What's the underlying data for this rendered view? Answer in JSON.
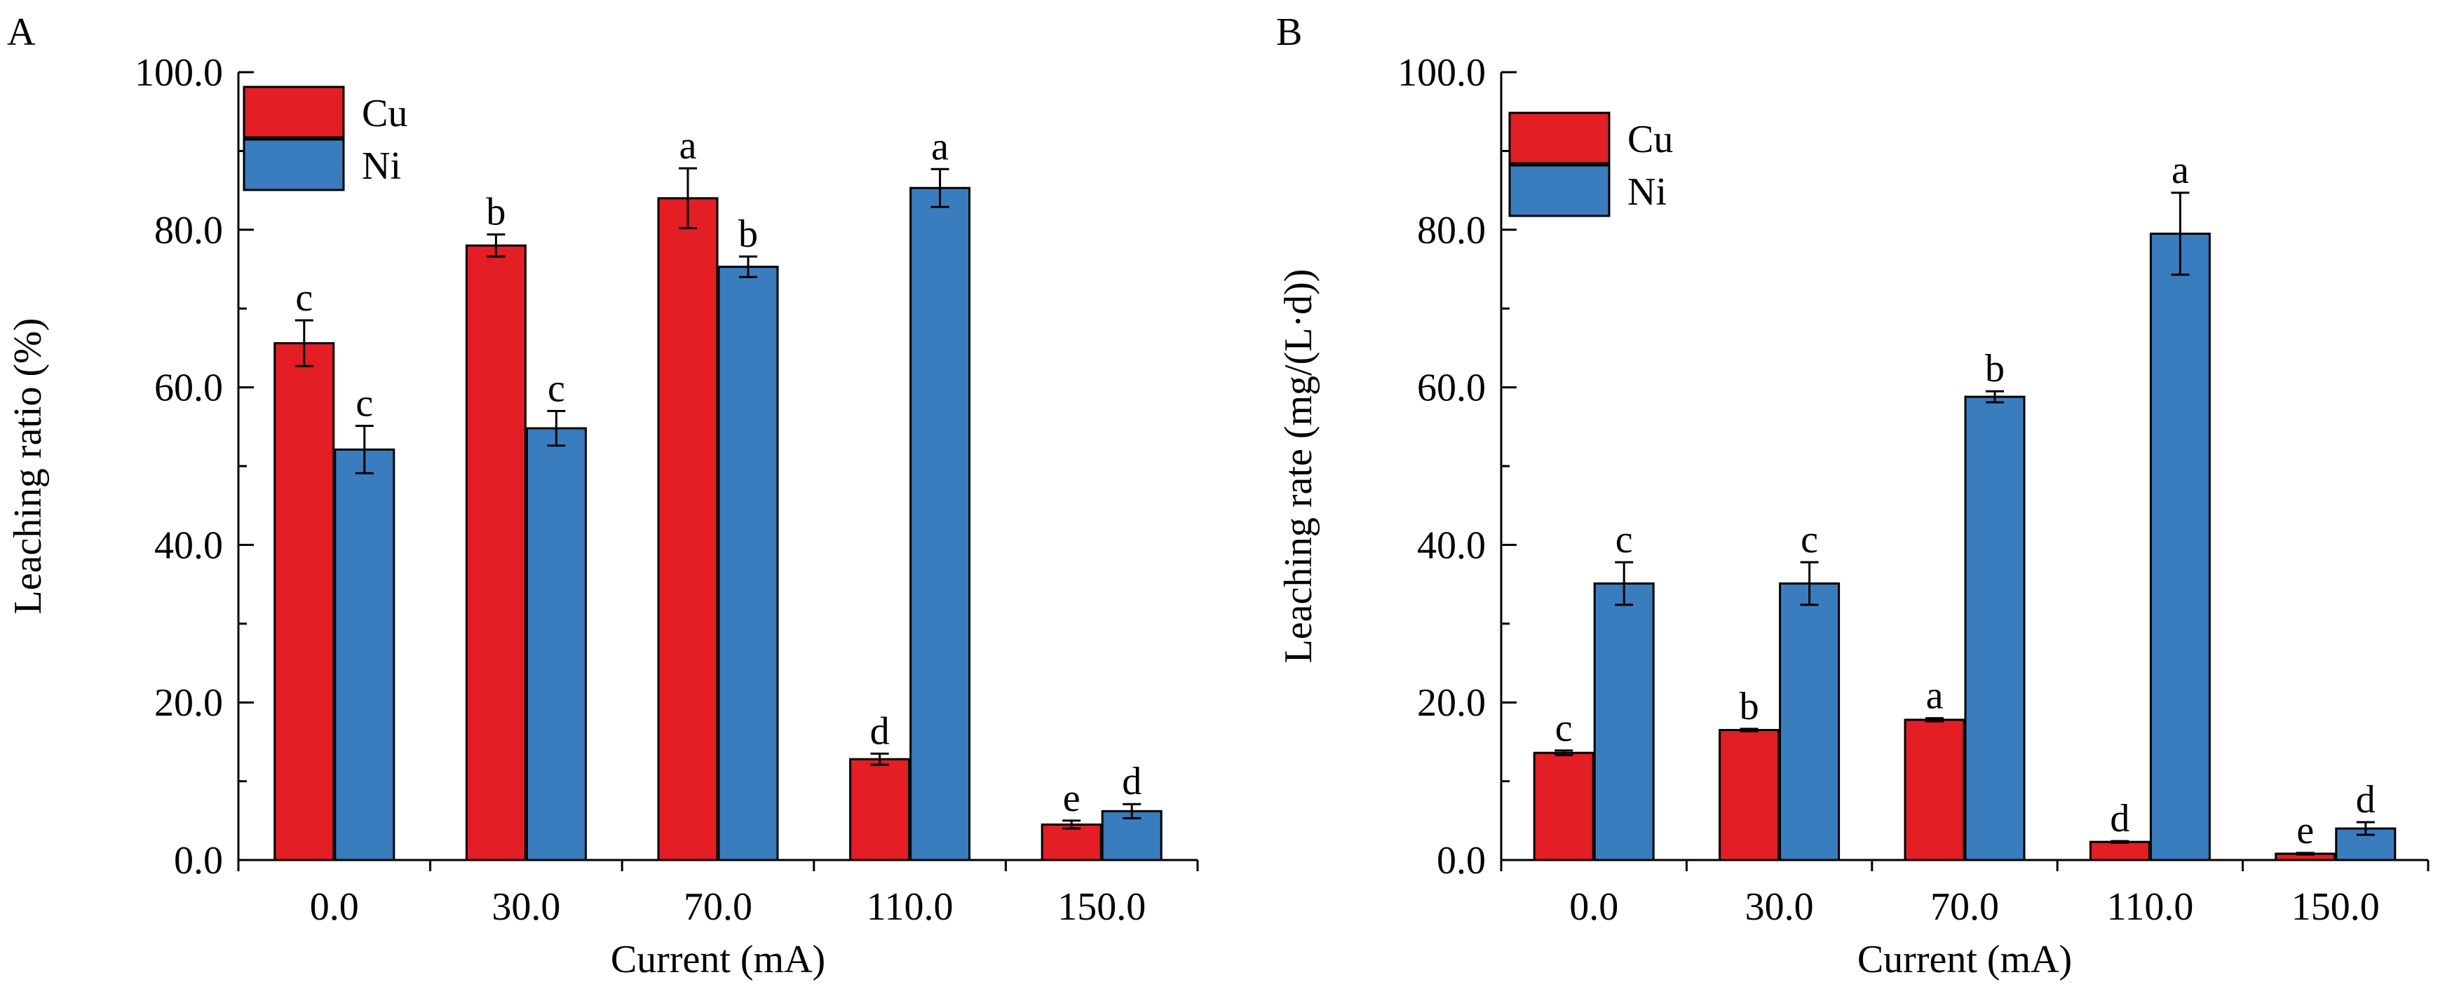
{
  "colors": {
    "Cu": "#E31E24",
    "Ni": "#3A7DBF"
  },
  "chart_data": [
    {
      "panel_label": "A",
      "type": "bar",
      "xlabel": "Current (mA)",
      "ylabel": "Leaching ratio (%)",
      "ylim": [
        0,
        100
      ],
      "yticks": [
        "0.0",
        "20.0",
        "40.0",
        "60.0",
        "80.0",
        "100.0"
      ],
      "categories": [
        "0.0",
        "30.0",
        "70.0",
        "110.0",
        "150.0"
      ],
      "legend_position": "top-left",
      "grid": false,
      "series": [
        {
          "name": "Cu",
          "values": [
            65.6,
            78.0,
            84.0,
            12.8,
            4.5
          ],
          "errors": [
            2.9,
            1.4,
            3.8,
            0.7,
            0.5
          ],
          "letters": [
            "c",
            "b",
            "a",
            "d",
            "e"
          ]
        },
        {
          "name": "Ni",
          "values": [
            52.1,
            54.8,
            75.3,
            85.3,
            6.2
          ],
          "errors": [
            3.0,
            2.2,
            1.3,
            2.4,
            0.9
          ],
          "letters": [
            "c",
            "c",
            "b",
            "a",
            "d"
          ]
        }
      ]
    },
    {
      "panel_label": "B",
      "type": "bar",
      "xlabel": "Current (mA)",
      "ylabel": "Leaching rate (mg/(L·d))",
      "ylim": [
        0,
        100
      ],
      "yticks": [
        "0.0",
        "20.0",
        "40.0",
        "60.0",
        "80.0",
        "100.0"
      ],
      "categories": [
        "0.0",
        "30.0",
        "70.0",
        "110.0",
        "150.0"
      ],
      "legend_position": "top-left",
      "grid": false,
      "series": [
        {
          "name": "Cu",
          "values": [
            13.6,
            16.5,
            17.8,
            2.3,
            0.8
          ],
          "errors": [
            0.3,
            0.15,
            0.2,
            0.1,
            0.1
          ],
          "letters": [
            "c",
            "b",
            "a",
            "d",
            "e"
          ]
        },
        {
          "name": "Ni",
          "values": [
            35.1,
            35.1,
            58.8,
            79.5,
            4.0
          ],
          "errors": [
            2.7,
            2.7,
            0.7,
            5.2,
            0.8
          ],
          "letters": [
            "c",
            "c",
            "b",
            "a",
            "d"
          ]
        }
      ]
    }
  ]
}
